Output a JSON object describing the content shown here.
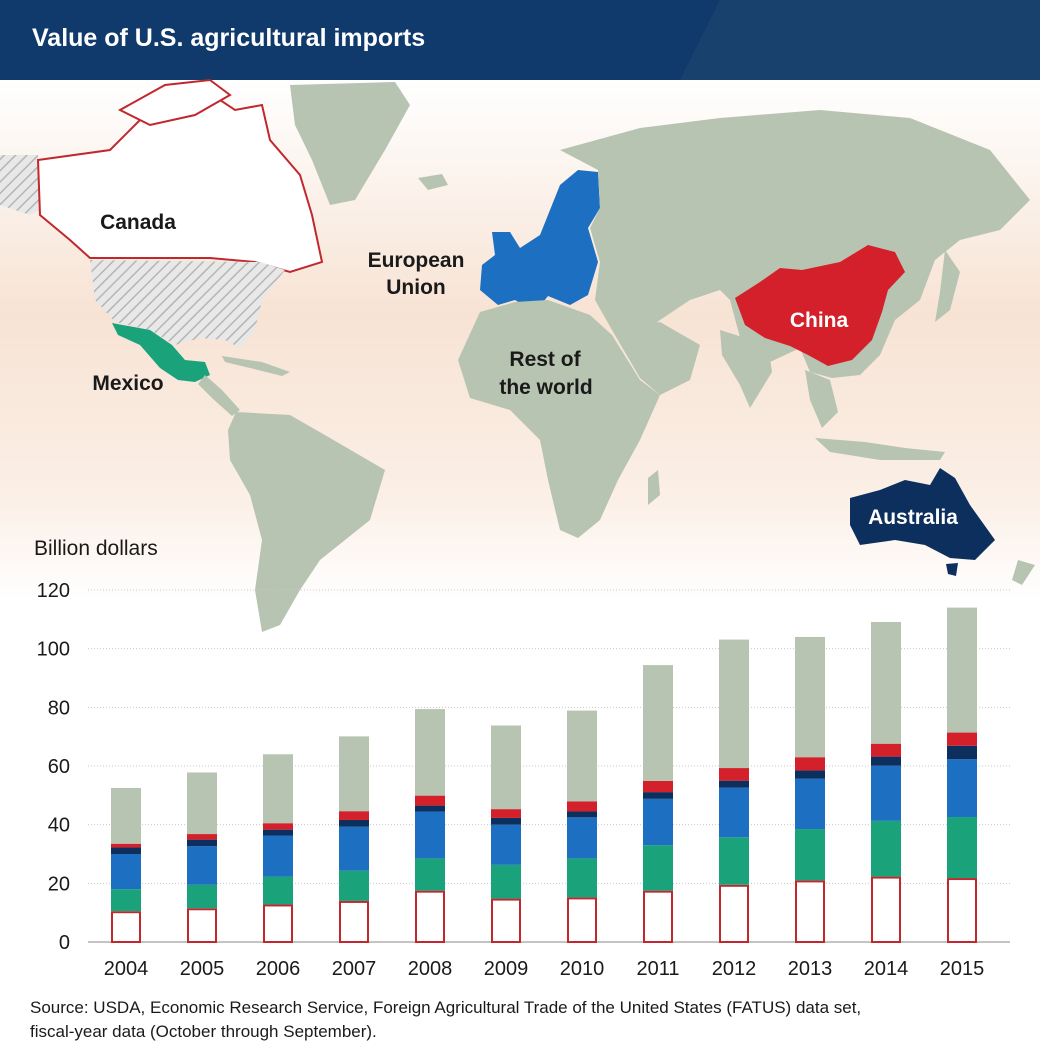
{
  "header": {
    "title": "Value of U.S. agricultural imports"
  },
  "map": {
    "labels": {
      "canada": "Canada",
      "eu_line1": "European",
      "eu_line2": "Union",
      "mexico": "Mexico",
      "row_line1": "Rest of",
      "row_line2": "the world",
      "china": "China",
      "australia": "Australia"
    }
  },
  "chart_data": {
    "type": "bar",
    "stacked": true,
    "ylabel": "Billion dollars",
    "ylim": [
      0,
      120
    ],
    "yticks": [
      0,
      20,
      40,
      60,
      80,
      100,
      120
    ],
    "categories": [
      "2004",
      "2005",
      "2006",
      "2007",
      "2008",
      "2009",
      "2010",
      "2011",
      "2012",
      "2013",
      "2014",
      "2015"
    ],
    "series": [
      {
        "name": "Canada",
        "color": "#ffffff",
        "stroke": "#c0282d",
        "values": [
          10.5,
          11.5,
          12.8,
          14.0,
          17.5,
          14.8,
          15.2,
          17.5,
          19.5,
          21.0,
          22.3,
          21.8
        ]
      },
      {
        "name": "Mexico",
        "color": "#1aa37a",
        "values": [
          7.5,
          8.0,
          9.5,
          10.3,
          11.0,
          11.5,
          13.3,
          15.5,
          16.2,
          17.5,
          19.0,
          20.8
        ]
      },
      {
        "name": "European Union",
        "color": "#1d6fc1",
        "values": [
          12.0,
          13.2,
          14.0,
          15.0,
          16.0,
          13.7,
          14.0,
          15.8,
          16.9,
          17.2,
          18.8,
          19.7
        ]
      },
      {
        "name": "Australia",
        "color": "#0c2f5e",
        "values": [
          2.2,
          2.2,
          2.0,
          2.3,
          2.0,
          2.3,
          2.0,
          2.3,
          2.4,
          2.8,
          3.1,
          4.6
        ]
      },
      {
        "name": "China",
        "color": "#d3202a",
        "values": [
          1.3,
          1.9,
          2.2,
          3.0,
          3.4,
          3.0,
          3.4,
          3.8,
          4.3,
          4.5,
          4.4,
          4.5
        ]
      },
      {
        "name": "Rest of the world",
        "color": "#b7c4b1",
        "values": [
          19.0,
          21.0,
          23.5,
          25.5,
          29.5,
          28.5,
          31.0,
          39.5,
          43.8,
          41.0,
          41.5,
          42.6
        ]
      }
    ]
  },
  "source": {
    "line1": "Source: USDA, Economic Research Service, Foreign Agricultural Trade of the United States (FATUS) data set,",
    "line2": "fiscal-year data (October through September)."
  }
}
